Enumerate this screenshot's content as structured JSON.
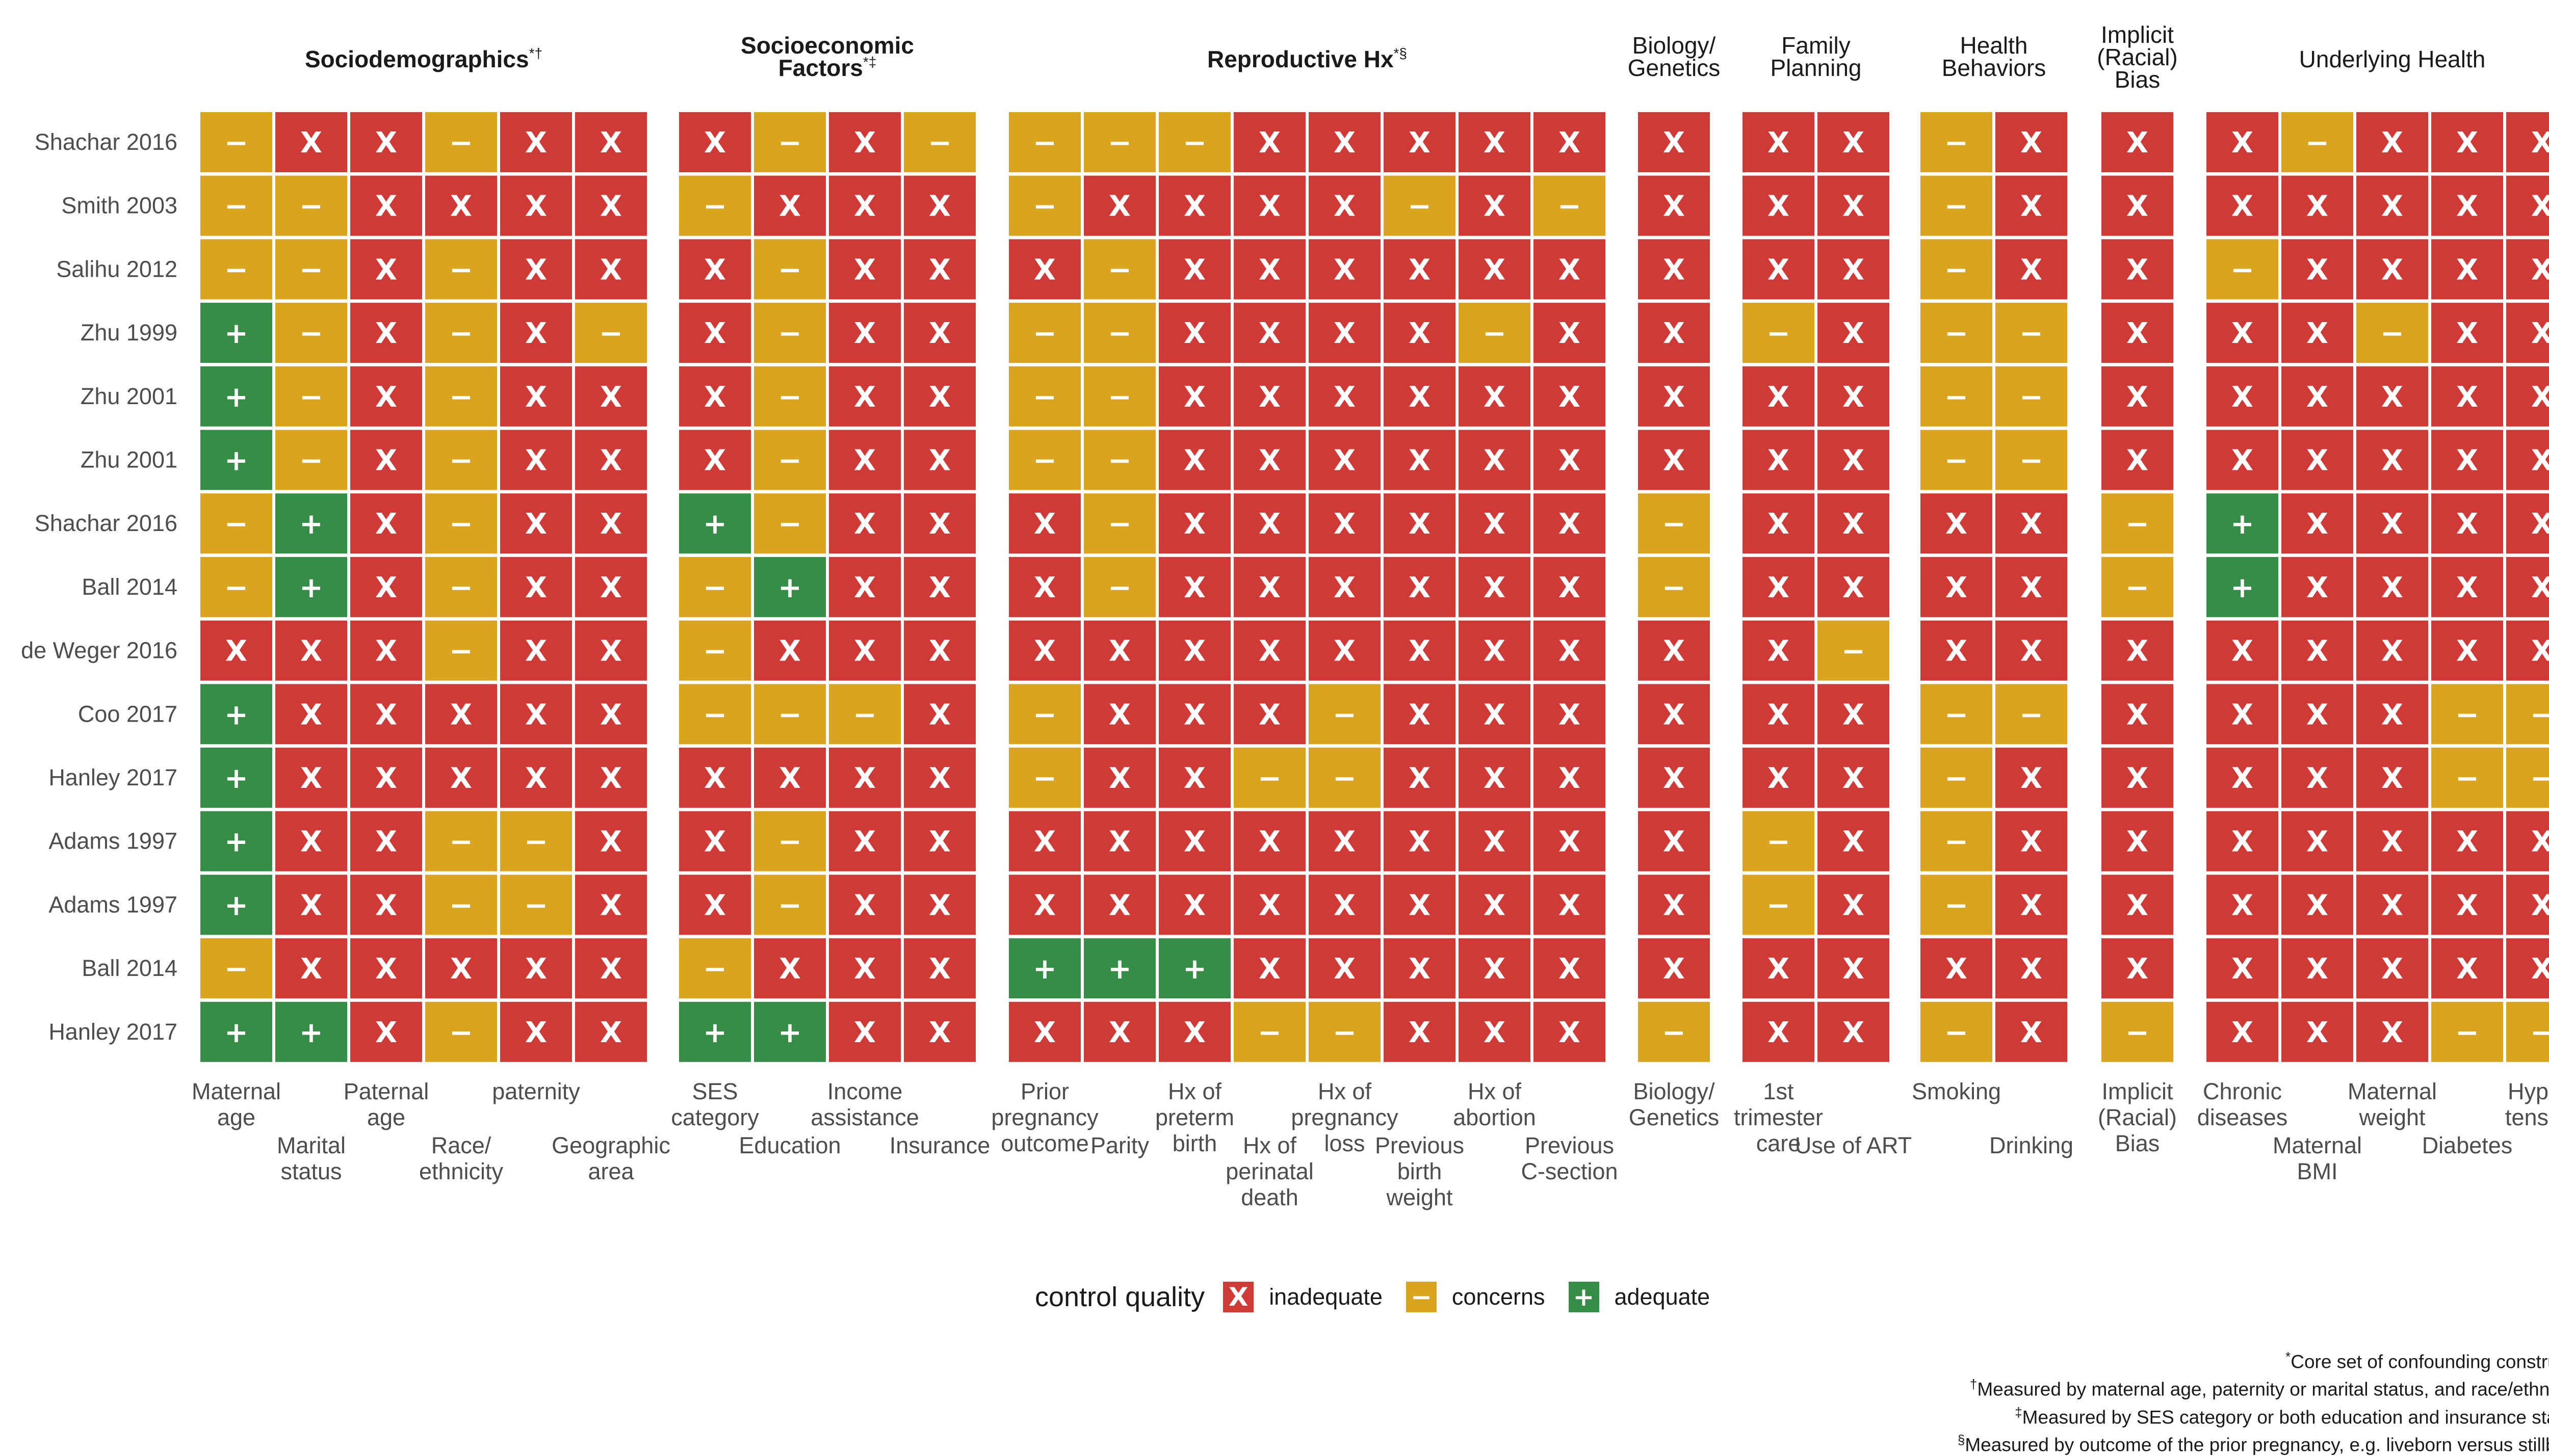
{
  "chart_data": {
    "type": "heatmap",
    "legend_title": "control quality",
    "legend_placement": "bottom",
    "levels": [
      {
        "code": "X",
        "label": "inadequate",
        "color": "#d03a36"
      },
      {
        "code": "-",
        "label": "concerns",
        "color": "#dba41f"
      },
      {
        "code": "+",
        "label": "adequate",
        "color": "#358d46"
      }
    ],
    "studies": [
      "Shachar 2016",
      "Smith 2003",
      "Salihu 2012",
      "Zhu 1999",
      "Zhu 2001",
      "Zhu 2001",
      "Shachar 2016",
      "Ball 2014",
      "de Weger 2016",
      "Coo 2017",
      "Hanley 2017",
      "Adams 1997",
      "Adams 1997",
      "Ball 2014",
      "Hanley 2017"
    ],
    "groups": [
      {
        "title": [
          "Sociodemographics"
        ],
        "mark": "*†",
        "bold": true,
        "columns": [
          {
            "label": [
              "Maternal",
              "age"
            ],
            "row": 0
          },
          {
            "label": [
              "Marital",
              "status"
            ],
            "row": 1
          },
          {
            "label": [
              "Paternal",
              "age"
            ],
            "row": 0
          },
          {
            "label": [
              "Race/",
              "ethnicity"
            ],
            "row": 1
          },
          {
            "label": [
              "paternity"
            ],
            "row": 0
          },
          {
            "label": [
              "Geographic",
              "area"
            ],
            "row": 1
          }
        ],
        "values": [
          [
            "-",
            "X",
            "X",
            "-",
            "X",
            "X"
          ],
          [
            "-",
            "-",
            "X",
            "X",
            "X",
            "X"
          ],
          [
            "-",
            "-",
            "X",
            "-",
            "X",
            "X"
          ],
          [
            "+",
            "-",
            "X",
            "-",
            "X",
            "-"
          ],
          [
            "+",
            "-",
            "X",
            "-",
            "X",
            "X"
          ],
          [
            "+",
            "-",
            "X",
            "-",
            "X",
            "X"
          ],
          [
            "-",
            "+",
            "X",
            "-",
            "X",
            "X"
          ],
          [
            "-",
            "+",
            "X",
            "-",
            "X",
            "X"
          ],
          [
            "X",
            "X",
            "X",
            "-",
            "X",
            "X"
          ],
          [
            "+",
            "X",
            "X",
            "X",
            "X",
            "X"
          ],
          [
            "+",
            "X",
            "X",
            "X",
            "X",
            "X"
          ],
          [
            "+",
            "X",
            "X",
            "-",
            "-",
            "X"
          ],
          [
            "+",
            "X",
            "X",
            "-",
            "-",
            "X"
          ],
          [
            "-",
            "X",
            "X",
            "X",
            "X",
            "X"
          ],
          [
            "+",
            "+",
            "X",
            "-",
            "X",
            "X"
          ]
        ]
      },
      {
        "title": [
          "Socioeconomic",
          "Factors"
        ],
        "mark": "*‡",
        "bold": true,
        "columns": [
          {
            "label": [
              "SES",
              "category"
            ],
            "row": 0
          },
          {
            "label": [
              "Education"
            ],
            "row": 1
          },
          {
            "label": [
              "Income",
              "assistance"
            ],
            "row": 0
          },
          {
            "label": [
              "Insurance"
            ],
            "row": 1
          }
        ],
        "values": [
          [
            "X",
            "-",
            "X",
            "-"
          ],
          [
            "-",
            "X",
            "X",
            "X"
          ],
          [
            "X",
            "-",
            "X",
            "X"
          ],
          [
            "X",
            "-",
            "X",
            "X"
          ],
          [
            "X",
            "-",
            "X",
            "X"
          ],
          [
            "X",
            "-",
            "X",
            "X"
          ],
          [
            "+",
            "-",
            "X",
            "X"
          ],
          [
            "-",
            "+",
            "X",
            "X"
          ],
          [
            "-",
            "X",
            "X",
            "X"
          ],
          [
            "-",
            "-",
            "-",
            "X"
          ],
          [
            "X",
            "X",
            "X",
            "X"
          ],
          [
            "X",
            "-",
            "X",
            "X"
          ],
          [
            "X",
            "-",
            "X",
            "X"
          ],
          [
            "-",
            "X",
            "X",
            "X"
          ],
          [
            "+",
            "+",
            "X",
            "X"
          ]
        ]
      },
      {
        "title": [
          "Reproductive Hx"
        ],
        "mark": "*§",
        "bold": true,
        "columns": [
          {
            "label": [
              "Prior",
              "pregnancy",
              "outcome"
            ],
            "row": 0
          },
          {
            "label": [
              "Parity"
            ],
            "row": 1
          },
          {
            "label": [
              "Hx of",
              "preterm",
              "birth"
            ],
            "row": 0
          },
          {
            "label": [
              "Hx of",
              "perinatal",
              "death"
            ],
            "row": 1
          },
          {
            "label": [
              "Hx of",
              "pregnancy",
              "loss"
            ],
            "row": 0
          },
          {
            "label": [
              "Previous",
              "birth",
              "weight"
            ],
            "row": 1
          },
          {
            "label": [
              "Hx of",
              "abortion"
            ],
            "row": 0
          },
          {
            "label": [
              "Previous",
              "C-section"
            ],
            "row": 1
          }
        ],
        "values": [
          [
            "-",
            "-",
            "-",
            "X",
            "X",
            "X",
            "X",
            "X"
          ],
          [
            "-",
            "X",
            "X",
            "X",
            "X",
            "-",
            "X",
            "-"
          ],
          [
            "X",
            "-",
            "X",
            "X",
            "X",
            "X",
            "X",
            "X"
          ],
          [
            "-",
            "-",
            "X",
            "X",
            "X",
            "X",
            "-",
            "X"
          ],
          [
            "-",
            "-",
            "X",
            "X",
            "X",
            "X",
            "X",
            "X"
          ],
          [
            "-",
            "-",
            "X",
            "X",
            "X",
            "X",
            "X",
            "X"
          ],
          [
            "X",
            "-",
            "X",
            "X",
            "X",
            "X",
            "X",
            "X"
          ],
          [
            "X",
            "-",
            "X",
            "X",
            "X",
            "X",
            "X",
            "X"
          ],
          [
            "X",
            "X",
            "X",
            "X",
            "X",
            "X",
            "X",
            "X"
          ],
          [
            "-",
            "X",
            "X",
            "X",
            "-",
            "X",
            "X",
            "X"
          ],
          [
            "-",
            "X",
            "X",
            "-",
            "-",
            "X",
            "X",
            "X"
          ],
          [
            "X",
            "X",
            "X",
            "X",
            "X",
            "X",
            "X",
            "X"
          ],
          [
            "X",
            "X",
            "X",
            "X",
            "X",
            "X",
            "X",
            "X"
          ],
          [
            "+",
            "+",
            "+",
            "X",
            "X",
            "X",
            "X",
            "X"
          ],
          [
            "X",
            "X",
            "X",
            "-",
            "-",
            "X",
            "X",
            "X"
          ]
        ]
      },
      {
        "title": [
          "Biology/",
          "Genetics"
        ],
        "mark": "",
        "bold": false,
        "columns": [
          {
            "label": [
              "Biology/",
              "Genetics"
            ],
            "row": 0
          }
        ],
        "values": [
          [
            "X"
          ],
          [
            "X"
          ],
          [
            "X"
          ],
          [
            "X"
          ],
          [
            "X"
          ],
          [
            "X"
          ],
          [
            "-"
          ],
          [
            "-"
          ],
          [
            "X"
          ],
          [
            "X"
          ],
          [
            "X"
          ],
          [
            "X"
          ],
          [
            "X"
          ],
          [
            "X"
          ],
          [
            "-"
          ]
        ]
      },
      {
        "title": [
          "Family",
          "Planning"
        ],
        "mark": "",
        "bold": false,
        "columns": [
          {
            "label": [
              "1st",
              "trimester",
              "care"
            ],
            "row": 0
          },
          {
            "label": [
              "Use of ART"
            ],
            "row": 1
          }
        ],
        "values": [
          [
            "X",
            "X"
          ],
          [
            "X",
            "X"
          ],
          [
            "X",
            "X"
          ],
          [
            "-",
            "X"
          ],
          [
            "X",
            "X"
          ],
          [
            "X",
            "X"
          ],
          [
            "X",
            "X"
          ],
          [
            "X",
            "X"
          ],
          [
            "X",
            "-"
          ],
          [
            "X",
            "X"
          ],
          [
            "X",
            "X"
          ],
          [
            "-",
            "X"
          ],
          [
            "-",
            "X"
          ],
          [
            "X",
            "X"
          ],
          [
            "X",
            "X"
          ]
        ]
      },
      {
        "title": [
          "Health",
          "Behaviors"
        ],
        "mark": "",
        "bold": false,
        "columns": [
          {
            "label": [
              "Smoking"
            ],
            "row": 0
          },
          {
            "label": [
              "Drinking"
            ],
            "row": 1
          }
        ],
        "values": [
          [
            "-",
            "X"
          ],
          [
            "-",
            "X"
          ],
          [
            "-",
            "X"
          ],
          [
            "-",
            "-"
          ],
          [
            "-",
            "-"
          ],
          [
            "-",
            "-"
          ],
          [
            "X",
            "X"
          ],
          [
            "X",
            "X"
          ],
          [
            "X",
            "X"
          ],
          [
            "-",
            "-"
          ],
          [
            "-",
            "X"
          ],
          [
            "-",
            "X"
          ],
          [
            "-",
            "X"
          ],
          [
            "X",
            "X"
          ],
          [
            "-",
            "X"
          ]
        ]
      },
      {
        "title": [
          "Implicit",
          "(Racial)",
          "Bias"
        ],
        "mark": "",
        "bold": false,
        "columns": [
          {
            "label": [
              "Implicit",
              "(Racial)",
              "Bias"
            ],
            "row": 0
          }
        ],
        "values": [
          [
            "X"
          ],
          [
            "X"
          ],
          [
            "X"
          ],
          [
            "X"
          ],
          [
            "X"
          ],
          [
            "X"
          ],
          [
            "-"
          ],
          [
            "-"
          ],
          [
            "X"
          ],
          [
            "X"
          ],
          [
            "X"
          ],
          [
            "X"
          ],
          [
            "X"
          ],
          [
            "X"
          ],
          [
            "-"
          ]
        ]
      },
      {
        "title": [
          "Underlying Health"
        ],
        "mark": "",
        "bold": false,
        "columns": [
          {
            "label": [
              "Chronic",
              "diseases"
            ],
            "row": 0
          },
          {
            "label": [
              "Maternal",
              "BMI"
            ],
            "row": 1
          },
          {
            "label": [
              "Maternal",
              "weight"
            ],
            "row": 0
          },
          {
            "label": [
              "Diabetes"
            ],
            "row": 1
          },
          {
            "label": [
              "Hyper-",
              "tension"
            ],
            "row": 0
          }
        ],
        "values": [
          [
            "X",
            "-",
            "X",
            "X",
            "X"
          ],
          [
            "X",
            "X",
            "X",
            "X",
            "X"
          ],
          [
            "-",
            "X",
            "X",
            "X",
            "X"
          ],
          [
            "X",
            "X",
            "-",
            "X",
            "X"
          ],
          [
            "X",
            "X",
            "X",
            "X",
            "X"
          ],
          [
            "X",
            "X",
            "X",
            "X",
            "X"
          ],
          [
            "+",
            "X",
            "X",
            "X",
            "X"
          ],
          [
            "+",
            "X",
            "X",
            "X",
            "X"
          ],
          [
            "X",
            "X",
            "X",
            "X",
            "X"
          ],
          [
            "X",
            "X",
            "X",
            "-",
            "-"
          ],
          [
            "X",
            "X",
            "X",
            "-",
            "-"
          ],
          [
            "X",
            "X",
            "X",
            "X",
            "X"
          ],
          [
            "X",
            "X",
            "X",
            "X",
            "X"
          ],
          [
            "X",
            "X",
            "X",
            "X",
            "X"
          ],
          [
            "X",
            "X",
            "X",
            "-",
            "-"
          ]
        ]
      }
    ],
    "footnotes": [
      {
        "mark": "*",
        "text": "Core set of confounding constructs"
      },
      {
        "mark": "†",
        "text": "Measured by maternal age, paternity or marital status, and race/ethnicity"
      },
      {
        "mark": "‡",
        "text": "Measured by SES category or both education and insurance status"
      },
      {
        "mark": "§",
        "text": "Measured by outcome of the prior pregnancy, e.g. liveborn versus stillbirth"
      }
    ]
  }
}
